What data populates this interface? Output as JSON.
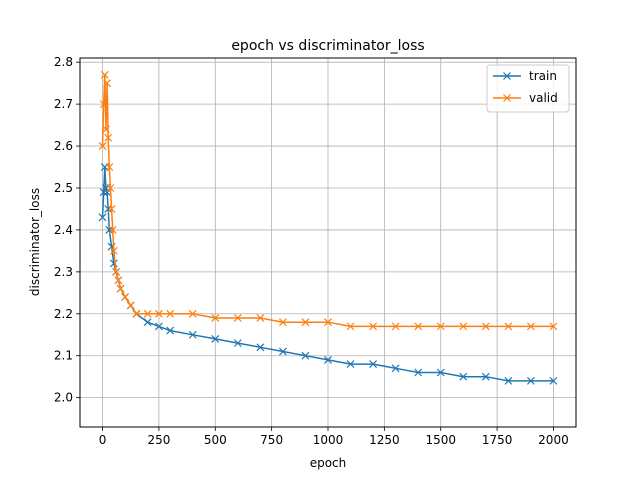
{
  "colors": {
    "train": "#1f77b4",
    "valid": "#ff7f0e",
    "grid": "#b0b0b0",
    "axis": "#000000"
  },
  "chart_data": {
    "type": "line",
    "title": "epoch vs discriminator_loss",
    "xlabel": "epoch",
    "ylabel": "discriminator_loss",
    "xlim": [
      -100,
      2100
    ],
    "ylim": [
      1.93,
      2.81
    ],
    "xticks": [
      0,
      250,
      500,
      750,
      1000,
      1250,
      1500,
      1750,
      2000
    ],
    "xtick_labels": [
      "0",
      "250",
      "500",
      "750",
      "1000",
      "1250",
      "1500",
      "1750",
      "2000"
    ],
    "yticks": [
      2.0,
      2.1,
      2.2,
      2.3,
      2.4,
      2.5,
      2.6,
      2.7,
      2.8
    ],
    "ytick_labels": [
      "2.0",
      "2.1",
      "2.2",
      "2.3",
      "2.4",
      "2.5",
      "2.6",
      "2.7",
      "2.8"
    ],
    "grid": true,
    "legend_position": "top-right",
    "marker": "x",
    "series": [
      {
        "name": "train",
        "x": [
          0,
          5,
          10,
          15,
          20,
          25,
          30,
          40,
          50,
          60,
          70,
          80,
          100,
          125,
          150,
          200,
          250,
          300,
          400,
          500,
          600,
          700,
          800,
          900,
          1000,
          1100,
          1200,
          1300,
          1400,
          1500,
          1600,
          1700,
          1800,
          1900,
          2000
        ],
        "y": [
          2.43,
          2.49,
          2.55,
          2.5,
          2.49,
          2.45,
          2.4,
          2.36,
          2.32,
          2.3,
          2.28,
          2.26,
          2.24,
          2.22,
          2.2,
          2.18,
          2.17,
          2.16,
          2.15,
          2.14,
          2.13,
          2.12,
          2.11,
          2.1,
          2.09,
          2.08,
          2.08,
          2.07,
          2.06,
          2.06,
          2.05,
          2.05,
          2.04,
          2.04,
          2.04
        ]
      },
      {
        "name": "valid",
        "x": [
          0,
          5,
          10,
          15,
          20,
          25,
          30,
          35,
          40,
          45,
          50,
          60,
          70,
          80,
          100,
          125,
          150,
          200,
          250,
          300,
          400,
          500,
          600,
          700,
          800,
          900,
          1000,
          1100,
          1200,
          1300,
          1400,
          1500,
          1600,
          1700,
          1800,
          1900,
          2000
        ],
        "y": [
          2.6,
          2.7,
          2.77,
          2.64,
          2.75,
          2.62,
          2.55,
          2.5,
          2.45,
          2.4,
          2.35,
          2.3,
          2.28,
          2.26,
          2.24,
          2.22,
          2.2,
          2.2,
          2.2,
          2.2,
          2.2,
          2.19,
          2.19,
          2.19,
          2.18,
          2.18,
          2.18,
          2.17,
          2.17,
          2.17,
          2.17,
          2.17,
          2.17,
          2.17,
          2.17,
          2.17,
          2.17
        ]
      }
    ]
  }
}
